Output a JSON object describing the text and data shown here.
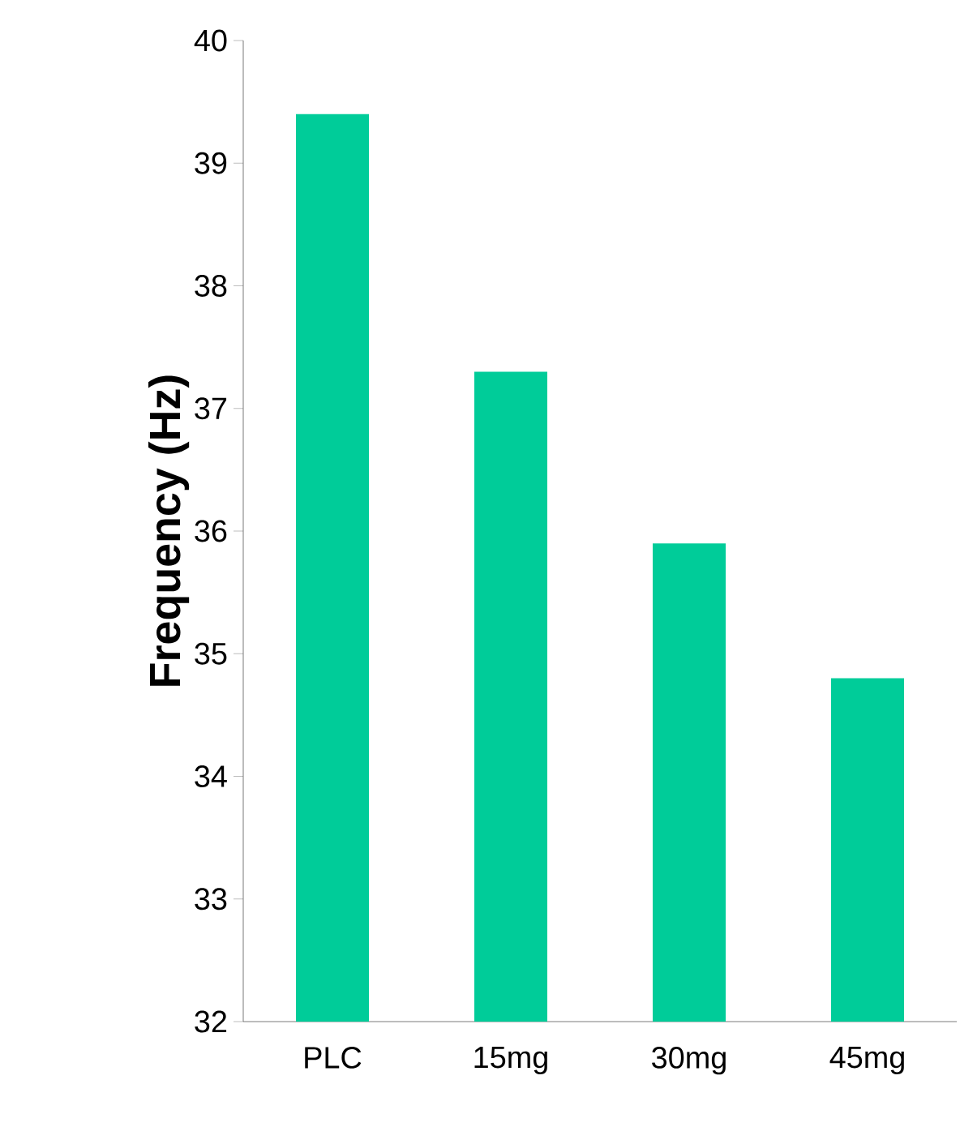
{
  "chart_data": {
    "type": "bar",
    "ylabel": "Frequency (Hz)",
    "categories": [
      "PLC",
      "15mg",
      "30mg",
      "45mg"
    ],
    "values": [
      39.4,
      37.3,
      35.9,
      34.8
    ],
    "color": "#00cc99",
    "ylim": [
      32,
      40
    ],
    "yticks": [
      32,
      33,
      34,
      35,
      36,
      37,
      38,
      39,
      40
    ],
    "grid": false
  }
}
